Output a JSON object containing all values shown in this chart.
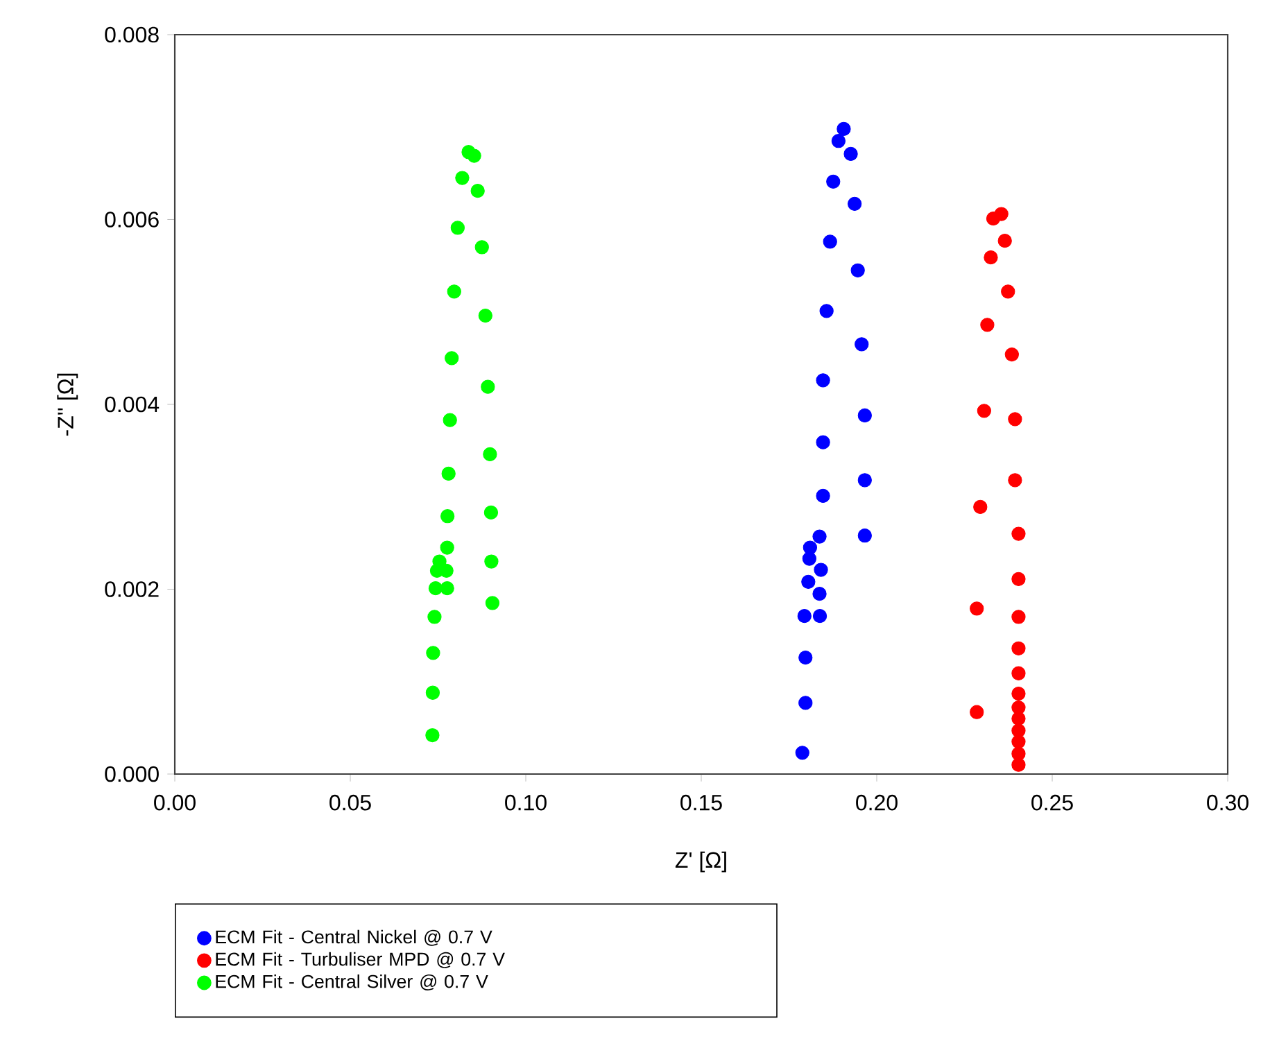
{
  "chart_data": {
    "type": "scatter",
    "xlabel": "Z' [Ω]",
    "ylabel": "-Z'' [Ω]",
    "xlim": [
      0,
      0.3
    ],
    "ylim": [
      0,
      0.008
    ],
    "xticks": [
      {
        "value": 0,
        "label": "0.00"
      },
      {
        "value": 0.05,
        "label": "0.05"
      },
      {
        "value": 0.1,
        "label": "0.10"
      },
      {
        "value": 0.15,
        "label": "0.15"
      },
      {
        "value": 0.2,
        "label": "0.20"
      },
      {
        "value": 0.25,
        "label": "0.25"
      },
      {
        "value": 0.3,
        "label": "0.30"
      }
    ],
    "yticks": [
      {
        "value": 0,
        "label": "0.000"
      },
      {
        "value": 0.002,
        "label": "0.002"
      },
      {
        "value": 0.004,
        "label": "0.004"
      },
      {
        "value": 0.006,
        "label": "0.006"
      },
      {
        "value": 0.008,
        "label": "0.008"
      }
    ],
    "marker": "circle",
    "legend": "bottom",
    "series": [
      {
        "name": "ECM Fit - Central Nickel @ 0.7 V",
        "color": "#0000ff",
        "x": [
          0.1906,
          0.1891,
          0.1926,
          0.1876,
          0.1937,
          0.1867,
          0.1946,
          0.1857,
          0.1957,
          0.1847,
          0.1966,
          0.1847,
          0.1966,
          0.1847,
          0.1966,
          0.1837,
          0.181,
          0.1808,
          0.1841,
          0.1805,
          0.1837,
          0.1794,
          0.1838,
          0.1797,
          0.1797,
          0.1788
        ],
        "values": [
          0.00698,
          0.00685,
          0.00671,
          0.00641,
          0.00617,
          0.00576,
          0.00545,
          0.00501,
          0.00465,
          0.00426,
          0.00388,
          0.00359,
          0.00318,
          0.00301,
          0.00258,
          0.00257,
          0.00245,
          0.00233,
          0.00221,
          0.00208,
          0.00195,
          0.00171,
          0.00171,
          0.00126,
          0.00077,
          0.00023
        ]
      },
      {
        "name": "ECM Fit - Turbuliser MPD @ 0.7 V",
        "color": "#ff0000",
        "x": [
          0.2355,
          0.2332,
          0.2365,
          0.2325,
          0.2374,
          0.2315,
          0.2385,
          0.2306,
          0.2394,
          0.2394,
          0.2295,
          0.2404,
          0.2404,
          0.2285,
          0.2404,
          0.2404,
          0.2404,
          0.2404,
          0.2285,
          0.2404,
          0.2404,
          0.2404,
          0.2404,
          0.2404,
          0.2404,
          null
        ],
        "values": [
          0.00606,
          0.00601,
          0.00577,
          0.00559,
          0.00522,
          0.00486,
          0.00454,
          0.00393,
          0.00384,
          0.00318,
          0.00289,
          0.0026,
          0.00211,
          0.00179,
          0.0017,
          0.00136,
          0.00109,
          0.00087,
          0.00067,
          0.00072,
          0.0006,
          0.00047,
          0.00035,
          0.00022,
          0.0001,
          null
        ]
      },
      {
        "name": "ECM Fit - Central Silver @ 0.7 V",
        "color": "#00ff00",
        "x": [
          0.0837,
          0.0853,
          0.0819,
          0.0863,
          0.0806,
          0.0875,
          0.0796,
          0.0885,
          0.0789,
          0.0892,
          0.0784,
          0.0898,
          0.078,
          0.0901,
          0.0777,
          0.0776,
          0.0754,
          0.0774,
          0.0747,
          0.0743,
          0.0776,
          0.0902,
          0.0905,
          0.074,
          0.0736,
          0.0735,
          0.0734
        ],
        "values": [
          0.00673,
          0.00669,
          0.00645,
          0.00631,
          0.00591,
          0.0057,
          0.00522,
          0.00496,
          0.0045,
          0.00419,
          0.00383,
          0.00346,
          0.00325,
          0.00283,
          0.00279,
          0.00245,
          0.0023,
          0.0022,
          0.0022,
          0.00201,
          0.00201,
          0.0023,
          0.00185,
          0.0017,
          0.00131,
          0.00088,
          0.00042
        ]
      }
    ]
  }
}
